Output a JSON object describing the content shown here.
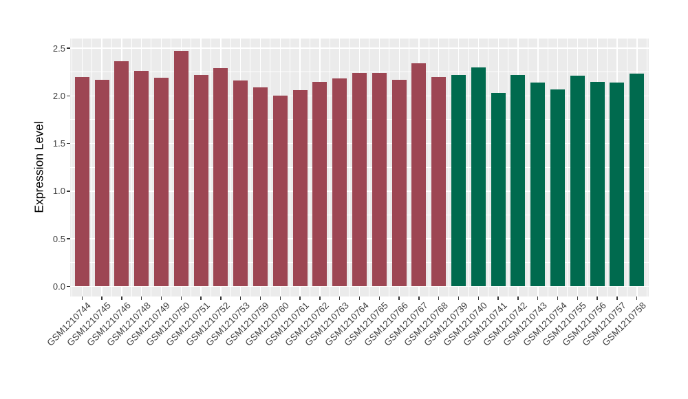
{
  "figure": {
    "background": "#FFFFFF",
    "panel_background": "#EBEBEB",
    "grid_color": "#FFFFFF",
    "axis_text_color": "#404040",
    "axis_title_color": "#000000"
  },
  "chart_data": {
    "type": "bar",
    "title": "",
    "xlabel": "",
    "ylabel": "Expression Level",
    "ylim": [
      0,
      2.5
    ],
    "yticks": [
      0.0,
      0.5,
      1.0,
      1.5,
      2.0,
      2.5
    ],
    "ytick_labels": [
      "0.0",
      "0.5",
      "1.0",
      "1.5",
      "2.0",
      "2.5"
    ],
    "grid": true,
    "legend": false,
    "categories": [
      "GSM1210744",
      "GSM1210745",
      "GSM1210746",
      "GSM1210748",
      "GSM1210749",
      "GSM1210750",
      "GSM1210751",
      "GSM1210752",
      "GSM1210753",
      "GSM1210759",
      "GSM1210760",
      "GSM1210761",
      "GSM1210762",
      "GSM1210763",
      "GSM1210764",
      "GSM1210765",
      "GSM1210766",
      "GSM1210767",
      "GSM1210768",
      "GSM1210739",
      "GSM1210740",
      "GSM1210741",
      "GSM1210742",
      "GSM1210743",
      "GSM1210754",
      "GSM1210755",
      "GSM1210756",
      "GSM1210757",
      "GSM1210758"
    ],
    "values": [
      2.2,
      2.17,
      2.36,
      2.26,
      2.19,
      2.47,
      2.22,
      2.29,
      2.16,
      2.09,
      2.0,
      2.06,
      2.15,
      2.18,
      2.24,
      2.24,
      2.17,
      2.34,
      2.2,
      2.22,
      2.3,
      2.03,
      2.22,
      2.14,
      2.07,
      2.21,
      2.15,
      2.14,
      2.23
    ],
    "groups": [
      "maroon",
      "maroon",
      "maroon",
      "maroon",
      "maroon",
      "maroon",
      "maroon",
      "maroon",
      "maroon",
      "maroon",
      "maroon",
      "maroon",
      "maroon",
      "maroon",
      "maroon",
      "maroon",
      "maroon",
      "maroon",
      "maroon",
      "green",
      "green",
      "green",
      "green",
      "green",
      "green",
      "green",
      "green",
      "green",
      "green"
    ],
    "group_colors": {
      "maroon": "#9D4653",
      "green": "#006A4E"
    }
  }
}
